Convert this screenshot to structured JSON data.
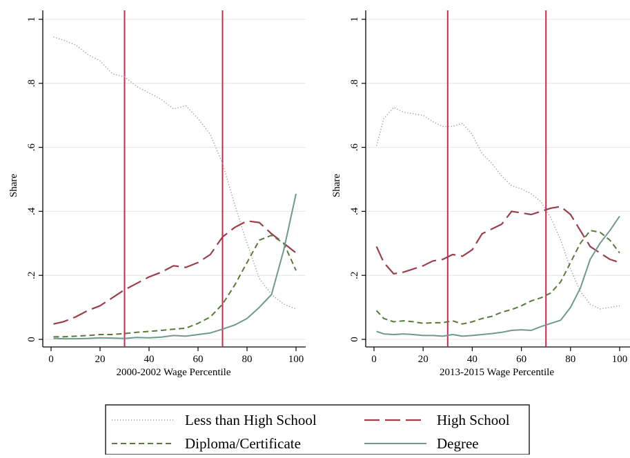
{
  "legend": {
    "items": [
      {
        "label": "Less than High School",
        "style": "dotted",
        "color": "#9a9a9a"
      },
      {
        "label": "High School",
        "style": "longdash",
        "color": "#9c3d4a"
      },
      {
        "label": "Diploma/Certificate",
        "style": "dash",
        "color": "#587a37"
      },
      {
        "label": "Degree",
        "style": "solid",
        "color": "#6d9a8d"
      }
    ]
  },
  "colors": {
    "vline": "#c8284f",
    "gridline": "#e6e6e6",
    "axis": "#000000"
  },
  "chart_data": [
    {
      "type": "line",
      "xlabel": "2000-2002 Wage Percentile",
      "ylabel": "Share",
      "xlim": [
        0,
        100
      ],
      "ylim": [
        0,
        1
      ],
      "xticks": [
        0,
        20,
        40,
        60,
        80,
        100
      ],
      "yticks": [
        0,
        0.2,
        0.4,
        0.6,
        0.8,
        1
      ],
      "ytick_labels": [
        "0",
        ".2",
        ".4",
        ".6",
        ".8",
        "1"
      ],
      "grid": true,
      "vlines": [
        30,
        70
      ],
      "series": [
        {
          "name": "Less than High School",
          "x": [
            1,
            5,
            10,
            15,
            20,
            25,
            30,
            35,
            40,
            45,
            50,
            55,
            60,
            65,
            70,
            75,
            80,
            85,
            90,
            95,
            100
          ],
          "y": [
            0.945,
            0.935,
            0.92,
            0.89,
            0.87,
            0.83,
            0.82,
            0.79,
            0.77,
            0.75,
            0.72,
            0.73,
            0.69,
            0.64,
            0.55,
            0.42,
            0.3,
            0.19,
            0.14,
            0.11,
            0.095
          ]
        },
        {
          "name": "High School",
          "x": [
            1,
            5,
            10,
            15,
            20,
            25,
            30,
            35,
            40,
            45,
            50,
            55,
            60,
            65,
            70,
            75,
            80,
            85,
            90,
            95,
            100
          ],
          "y": [
            0.048,
            0.055,
            0.07,
            0.09,
            0.105,
            0.13,
            0.155,
            0.175,
            0.195,
            0.21,
            0.23,
            0.225,
            0.24,
            0.265,
            0.32,
            0.35,
            0.37,
            0.365,
            0.33,
            0.3,
            0.27
          ]
        },
        {
          "name": "Diploma/Certificate",
          "x": [
            1,
            5,
            10,
            15,
            20,
            25,
            30,
            35,
            40,
            45,
            50,
            55,
            60,
            65,
            70,
            75,
            80,
            85,
            90,
            95,
            100
          ],
          "y": [
            0.008,
            0.008,
            0.01,
            0.012,
            0.015,
            0.015,
            0.018,
            0.022,
            0.025,
            0.028,
            0.032,
            0.035,
            0.05,
            0.07,
            0.11,
            0.17,
            0.24,
            0.31,
            0.325,
            0.3,
            0.215
          ]
        },
        {
          "name": "Degree",
          "x": [
            1,
            5,
            10,
            15,
            20,
            25,
            30,
            35,
            40,
            45,
            50,
            55,
            60,
            65,
            70,
            75,
            80,
            85,
            90,
            95,
            100
          ],
          "y": [
            0.003,
            0.002,
            0.002,
            0.003,
            0.005,
            0.004,
            0.003,
            0.006,
            0.005,
            0.007,
            0.012,
            0.01,
            0.015,
            0.02,
            0.032,
            0.045,
            0.065,
            0.1,
            0.14,
            0.28,
            0.455
          ]
        }
      ]
    },
    {
      "type": "line",
      "xlabel": "2013-2015 Wage Percentile",
      "ylabel": "Share",
      "xlim": [
        0,
        100
      ],
      "ylim": [
        0,
        1
      ],
      "xticks": [
        0,
        20,
        40,
        60,
        80,
        100
      ],
      "yticks": [
        0,
        0.2,
        0.4,
        0.6,
        0.8,
        1
      ],
      "ytick_labels": [
        "0",
        ".2",
        ".4",
        ".6",
        ".8",
        "1"
      ],
      "grid": true,
      "vlines": [
        30,
        70
      ],
      "series": [
        {
          "name": "Less than High School",
          "x": [
            1,
            4,
            8,
            12,
            16,
            20,
            24,
            28,
            32,
            36,
            40,
            44,
            48,
            52,
            56,
            60,
            64,
            68,
            72,
            76,
            80,
            84,
            88,
            92,
            96,
            100
          ],
          "y": [
            0.605,
            0.69,
            0.725,
            0.71,
            0.705,
            0.7,
            0.68,
            0.665,
            0.665,
            0.675,
            0.64,
            0.58,
            0.55,
            0.51,
            0.48,
            0.47,
            0.455,
            0.43,
            0.38,
            0.31,
            0.22,
            0.15,
            0.11,
            0.095,
            0.1,
            0.105
          ]
        },
        {
          "name": "High School",
          "x": [
            1,
            4,
            8,
            12,
            16,
            20,
            24,
            28,
            32,
            36,
            40,
            44,
            48,
            52,
            56,
            60,
            64,
            68,
            72,
            76,
            80,
            84,
            88,
            92,
            96,
            100
          ],
          "y": [
            0.29,
            0.24,
            0.205,
            0.21,
            0.22,
            0.23,
            0.245,
            0.25,
            0.265,
            0.26,
            0.28,
            0.33,
            0.345,
            0.36,
            0.4,
            0.395,
            0.39,
            0.4,
            0.41,
            0.415,
            0.39,
            0.34,
            0.29,
            0.27,
            0.25,
            0.24
          ]
        },
        {
          "name": "Diploma/Certificate",
          "x": [
            1,
            4,
            8,
            12,
            16,
            20,
            24,
            28,
            32,
            36,
            40,
            44,
            48,
            52,
            56,
            60,
            64,
            68,
            72,
            76,
            80,
            84,
            88,
            92,
            96,
            100
          ],
          "y": [
            0.09,
            0.065,
            0.055,
            0.058,
            0.055,
            0.05,
            0.052,
            0.052,
            0.058,
            0.048,
            0.055,
            0.065,
            0.072,
            0.085,
            0.093,
            0.105,
            0.12,
            0.13,
            0.145,
            0.18,
            0.24,
            0.3,
            0.34,
            0.335,
            0.31,
            0.27
          ]
        },
        {
          "name": "Degree",
          "x": [
            1,
            4,
            8,
            12,
            16,
            20,
            24,
            28,
            32,
            36,
            40,
            44,
            48,
            52,
            56,
            60,
            64,
            68,
            72,
            76,
            80,
            84,
            88,
            92,
            96,
            100
          ],
          "y": [
            0.025,
            0.017,
            0.015,
            0.017,
            0.015,
            0.012,
            0.012,
            0.01,
            0.015,
            0.01,
            0.012,
            0.015,
            0.018,
            0.022,
            0.028,
            0.03,
            0.028,
            0.04,
            0.05,
            0.06,
            0.1,
            0.16,
            0.25,
            0.3,
            0.34,
            0.385
          ]
        }
      ]
    }
  ]
}
